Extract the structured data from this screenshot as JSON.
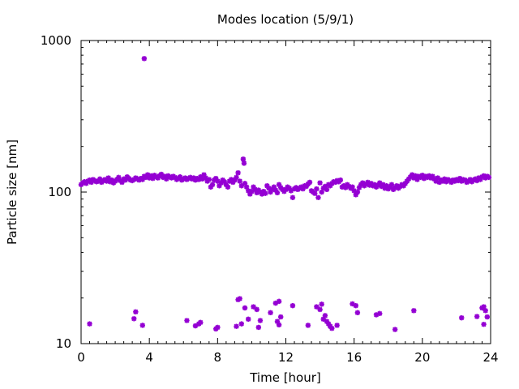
{
  "chart_data": {
    "type": "scatter",
    "title": "Modes location (5/9/1)",
    "xlabel": "Time [hour]",
    "ylabel": "Particle size [nm]",
    "xlim": [
      0,
      24
    ],
    "ylim": [
      10,
      1000
    ],
    "yscale": "log",
    "grid": false,
    "legend": "none",
    "marker_color": "#9400d3",
    "marker": "star",
    "x_ticks": [
      "0",
      "4",
      "8",
      "12",
      "16",
      "20",
      "24"
    ],
    "y_ticks": [
      "10",
      "100",
      "1000"
    ],
    "series": [
      {
        "points": [
          [
            0.0,
            112
          ],
          [
            0.1,
            115
          ],
          [
            0.2,
            117
          ],
          [
            0.3,
            114
          ],
          [
            0.4,
            118
          ],
          [
            0.5,
            120
          ],
          [
            0.6,
            116
          ],
          [
            0.7,
            121
          ],
          [
            0.8,
            119
          ],
          [
            0.9,
            117
          ],
          [
            1.0,
            118
          ],
          [
            1.1,
            122
          ],
          [
            1.2,
            116
          ],
          [
            1.3,
            119
          ],
          [
            1.4,
            121
          ],
          [
            1.5,
            118
          ],
          [
            1.6,
            124
          ],
          [
            1.7,
            117
          ],
          [
            1.8,
            120
          ],
          [
            1.9,
            115
          ],
          [
            2.0,
            118
          ],
          [
            2.1,
            121
          ],
          [
            2.2,
            125
          ],
          [
            2.3,
            119
          ],
          [
            2.4,
            116
          ],
          [
            2.5,
            122
          ],
          [
            2.6,
            120
          ],
          [
            2.7,
            126
          ],
          [
            2.8,
            123
          ],
          [
            2.9,
            120
          ],
          [
            3.0,
            119
          ],
          [
            3.1,
            121
          ],
          [
            3.2,
            124
          ],
          [
            3.3,
            122
          ],
          [
            3.4,
            120
          ],
          [
            3.5,
            123
          ],
          [
            3.6,
            121
          ],
          [
            3.7,
            127
          ],
          [
            3.8,
            125
          ],
          [
            3.9,
            130
          ],
          [
            4.0,
            124
          ],
          [
            4.1,
            128
          ],
          [
            4.2,
            123
          ],
          [
            4.3,
            129
          ],
          [
            4.4,
            126
          ],
          [
            4.5,
            124
          ],
          [
            4.6,
            128
          ],
          [
            4.7,
            131
          ],
          [
            4.8,
            125
          ],
          [
            4.9,
            127
          ],
          [
            5.0,
            122
          ],
          [
            5.1,
            128
          ],
          [
            5.2,
            126
          ],
          [
            5.3,
            124
          ],
          [
            5.4,
            127
          ],
          [
            5.5,
            125
          ],
          [
            5.6,
            121
          ],
          [
            5.7,
            123
          ],
          [
            5.8,
            126
          ],
          [
            5.9,
            120
          ],
          [
            6.0,
            122
          ],
          [
            6.1,
            124
          ],
          [
            6.2,
            121
          ],
          [
            6.3,
            123
          ],
          [
            6.4,
            125
          ],
          [
            6.5,
            122
          ],
          [
            6.6,
            124
          ],
          [
            6.7,
            120
          ],
          [
            6.8,
            123
          ],
          [
            6.9,
            121
          ],
          [
            7.0,
            126
          ],
          [
            7.1,
            122
          ],
          [
            7.2,
            130
          ],
          [
            7.3,
            124
          ],
          [
            7.4,
            118
          ],
          [
            7.5,
            121
          ],
          [
            7.6,
            108
          ],
          [
            7.7,
            112
          ],
          [
            7.8,
            120
          ],
          [
            7.9,
            123
          ],
          [
            8.0,
            118
          ],
          [
            8.1,
            110
          ],
          [
            8.2,
            115
          ],
          [
            8.3,
            120
          ],
          [
            8.4,
            117
          ],
          [
            8.5,
            112
          ],
          [
            8.6,
            108
          ],
          [
            8.7,
            118
          ],
          [
            8.8,
            121
          ],
          [
            8.9,
            116
          ],
          [
            9.0,
            120
          ],
          [
            9.1,
            125
          ],
          [
            9.2,
            134
          ],
          [
            9.3,
            118
          ],
          [
            9.4,
            110
          ],
          [
            9.5,
            165
          ],
          [
            9.55,
            155
          ],
          [
            9.6,
            114
          ],
          [
            9.7,
            108
          ],
          [
            9.8,
            102
          ],
          [
            9.9,
            97
          ],
          [
            10.0,
            101
          ],
          [
            10.1,
            108
          ],
          [
            10.2,
            104
          ],
          [
            10.3,
            99
          ],
          [
            10.4,
            103
          ],
          [
            10.5,
            100
          ],
          [
            10.6,
            97
          ],
          [
            10.7,
            101
          ],
          [
            10.8,
            98
          ],
          [
            10.9,
            110
          ],
          [
            11.0,
            106
          ],
          [
            11.1,
            100
          ],
          [
            11.2,
            104
          ],
          [
            11.3,
            108
          ],
          [
            11.4,
            103
          ],
          [
            11.5,
            99
          ],
          [
            11.6,
            112
          ],
          [
            11.7,
            107
          ],
          [
            11.8,
            104
          ],
          [
            11.9,
            101
          ],
          [
            12.0,
            104
          ],
          [
            12.1,
            108
          ],
          [
            12.2,
            106
          ],
          [
            12.3,
            102
          ],
          [
            12.4,
            92
          ],
          [
            12.5,
            105
          ],
          [
            12.6,
            107
          ],
          [
            12.7,
            104
          ],
          [
            12.8,
            106
          ],
          [
            12.9,
            108
          ],
          [
            13.0,
            105
          ],
          [
            13.1,
            110
          ],
          [
            13.2,
            109
          ],
          [
            13.3,
            113
          ],
          [
            13.4,
            116
          ],
          [
            13.5,
            102
          ],
          [
            13.6,
            100
          ],
          [
            13.7,
            98
          ],
          [
            13.8,
            105
          ],
          [
            13.9,
            92
          ],
          [
            14.0,
            115
          ],
          [
            14.1,
            100
          ],
          [
            14.2,
            106
          ],
          [
            14.3,
            109
          ],
          [
            14.4,
            104
          ],
          [
            14.5,
            112
          ],
          [
            14.6,
            110
          ],
          [
            14.7,
            114
          ],
          [
            14.8,
            117
          ],
          [
            14.9,
            116
          ],
          [
            15.0,
            119
          ],
          [
            15.1,
            117
          ],
          [
            15.2,
            120
          ],
          [
            15.3,
            108
          ],
          [
            15.4,
            110
          ],
          [
            15.5,
            107
          ],
          [
            15.6,
            112
          ],
          [
            15.7,
            109
          ],
          [
            15.8,
            106
          ],
          [
            15.9,
            108
          ],
          [
            16.0,
            102
          ],
          [
            16.1,
            96
          ],
          [
            16.2,
            100
          ],
          [
            16.3,
            107
          ],
          [
            16.4,
            112
          ],
          [
            16.5,
            115
          ],
          [
            16.6,
            110
          ],
          [
            16.7,
            113
          ],
          [
            16.8,
            116
          ],
          [
            16.9,
            111
          ],
          [
            17.0,
            114
          ],
          [
            17.1,
            110
          ],
          [
            17.2,
            112
          ],
          [
            17.3,
            108
          ],
          [
            17.4,
            111
          ],
          [
            17.5,
            115
          ],
          [
            17.6,
            109
          ],
          [
            17.7,
            112
          ],
          [
            17.8,
            106
          ],
          [
            17.9,
            110
          ],
          [
            18.0,
            105
          ],
          [
            18.1,
            108
          ],
          [
            18.2,
            112
          ],
          [
            18.3,
            104
          ],
          [
            18.4,
            107
          ],
          [
            18.5,
            110
          ],
          [
            18.6,
            106
          ],
          [
            18.7,
            109
          ],
          [
            18.8,
            112
          ],
          [
            18.9,
            110
          ],
          [
            19.0,
            114
          ],
          [
            19.1,
            118
          ],
          [
            19.2,
            122
          ],
          [
            19.3,
            126
          ],
          [
            19.4,
            130
          ],
          [
            19.5,
            124
          ],
          [
            19.6,
            128
          ],
          [
            19.7,
            121
          ],
          [
            19.8,
            127
          ],
          [
            19.9,
            125
          ],
          [
            20.0,
            129
          ],
          [
            20.1,
            123
          ],
          [
            20.2,
            127
          ],
          [
            20.3,
            125
          ],
          [
            20.4,
            128
          ],
          [
            20.5,
            124
          ],
          [
            20.6,
            127
          ],
          [
            20.7,
            122
          ],
          [
            20.8,
            118
          ],
          [
            20.9,
            124
          ],
          [
            21.0,
            116
          ],
          [
            21.1,
            120
          ],
          [
            21.2,
            118
          ],
          [
            21.3,
            122
          ],
          [
            21.4,
            117
          ],
          [
            21.5,
            121
          ],
          [
            21.6,
            119
          ],
          [
            21.7,
            116
          ],
          [
            21.8,
            120
          ],
          [
            21.9,
            118
          ],
          [
            22.0,
            121
          ],
          [
            22.1,
            119
          ],
          [
            22.2,
            123
          ],
          [
            22.3,
            118
          ],
          [
            22.4,
            121
          ],
          [
            22.5,
            120
          ],
          [
            22.6,
            116
          ],
          [
            22.7,
            118
          ],
          [
            22.8,
            121
          ],
          [
            22.9,
            117
          ],
          [
            23.0,
            120
          ],
          [
            23.1,
            122
          ],
          [
            23.2,
            119
          ],
          [
            23.3,
            124
          ],
          [
            23.4,
            121
          ],
          [
            23.5,
            126
          ],
          [
            23.6,
            128
          ],
          [
            23.7,
            124
          ],
          [
            23.8,
            127
          ],
          [
            23.9,
            125
          ],
          [
            3.7,
            760
          ],
          [
            0.5,
            13.5
          ],
          [
            3.1,
            14.6
          ],
          [
            3.2,
            16.2
          ],
          [
            3.6,
            13.2
          ],
          [
            6.2,
            14.2
          ],
          [
            6.7,
            13.1
          ],
          [
            6.9,
            13.5
          ],
          [
            7.0,
            13.8
          ],
          [
            7.9,
            12.5
          ],
          [
            8.0,
            12.8
          ],
          [
            9.1,
            13.0
          ],
          [
            9.2,
            19.5
          ],
          [
            9.3,
            19.8
          ],
          [
            9.4,
            13.5
          ],
          [
            9.6,
            17.2
          ],
          [
            9.8,
            14.5
          ],
          [
            10.1,
            17.5
          ],
          [
            10.3,
            16.8
          ],
          [
            10.4,
            12.8
          ],
          [
            10.5,
            14.2
          ],
          [
            11.1,
            16.0
          ],
          [
            11.4,
            18.5
          ],
          [
            11.5,
            14.0
          ],
          [
            11.6,
            19.0
          ],
          [
            11.7,
            15.0
          ],
          [
            11.6,
            13.3
          ],
          [
            12.4,
            17.8
          ],
          [
            13.3,
            13.2
          ],
          [
            13.8,
            17.5
          ],
          [
            14.0,
            16.8
          ],
          [
            14.1,
            18.2
          ],
          [
            14.2,
            14.5
          ],
          [
            14.3,
            15.3
          ],
          [
            14.4,
            14.0
          ],
          [
            14.5,
            13.5
          ],
          [
            14.6,
            13.0
          ],
          [
            14.7,
            12.6
          ],
          [
            15.0,
            13.2
          ],
          [
            15.9,
            18.3
          ],
          [
            16.1,
            17.8
          ],
          [
            16.2,
            16.0
          ],
          [
            17.3,
            15.5
          ],
          [
            17.5,
            15.8
          ],
          [
            18.4,
            12.4
          ],
          [
            19.5,
            16.5
          ],
          [
            22.3,
            14.8
          ],
          [
            23.2,
            15.1
          ],
          [
            23.5,
            17.2
          ],
          [
            23.6,
            13.4
          ],
          [
            23.7,
            16.5
          ],
          [
            23.8,
            15.0
          ],
          [
            23.6,
            17.5
          ]
        ]
      }
    ]
  }
}
